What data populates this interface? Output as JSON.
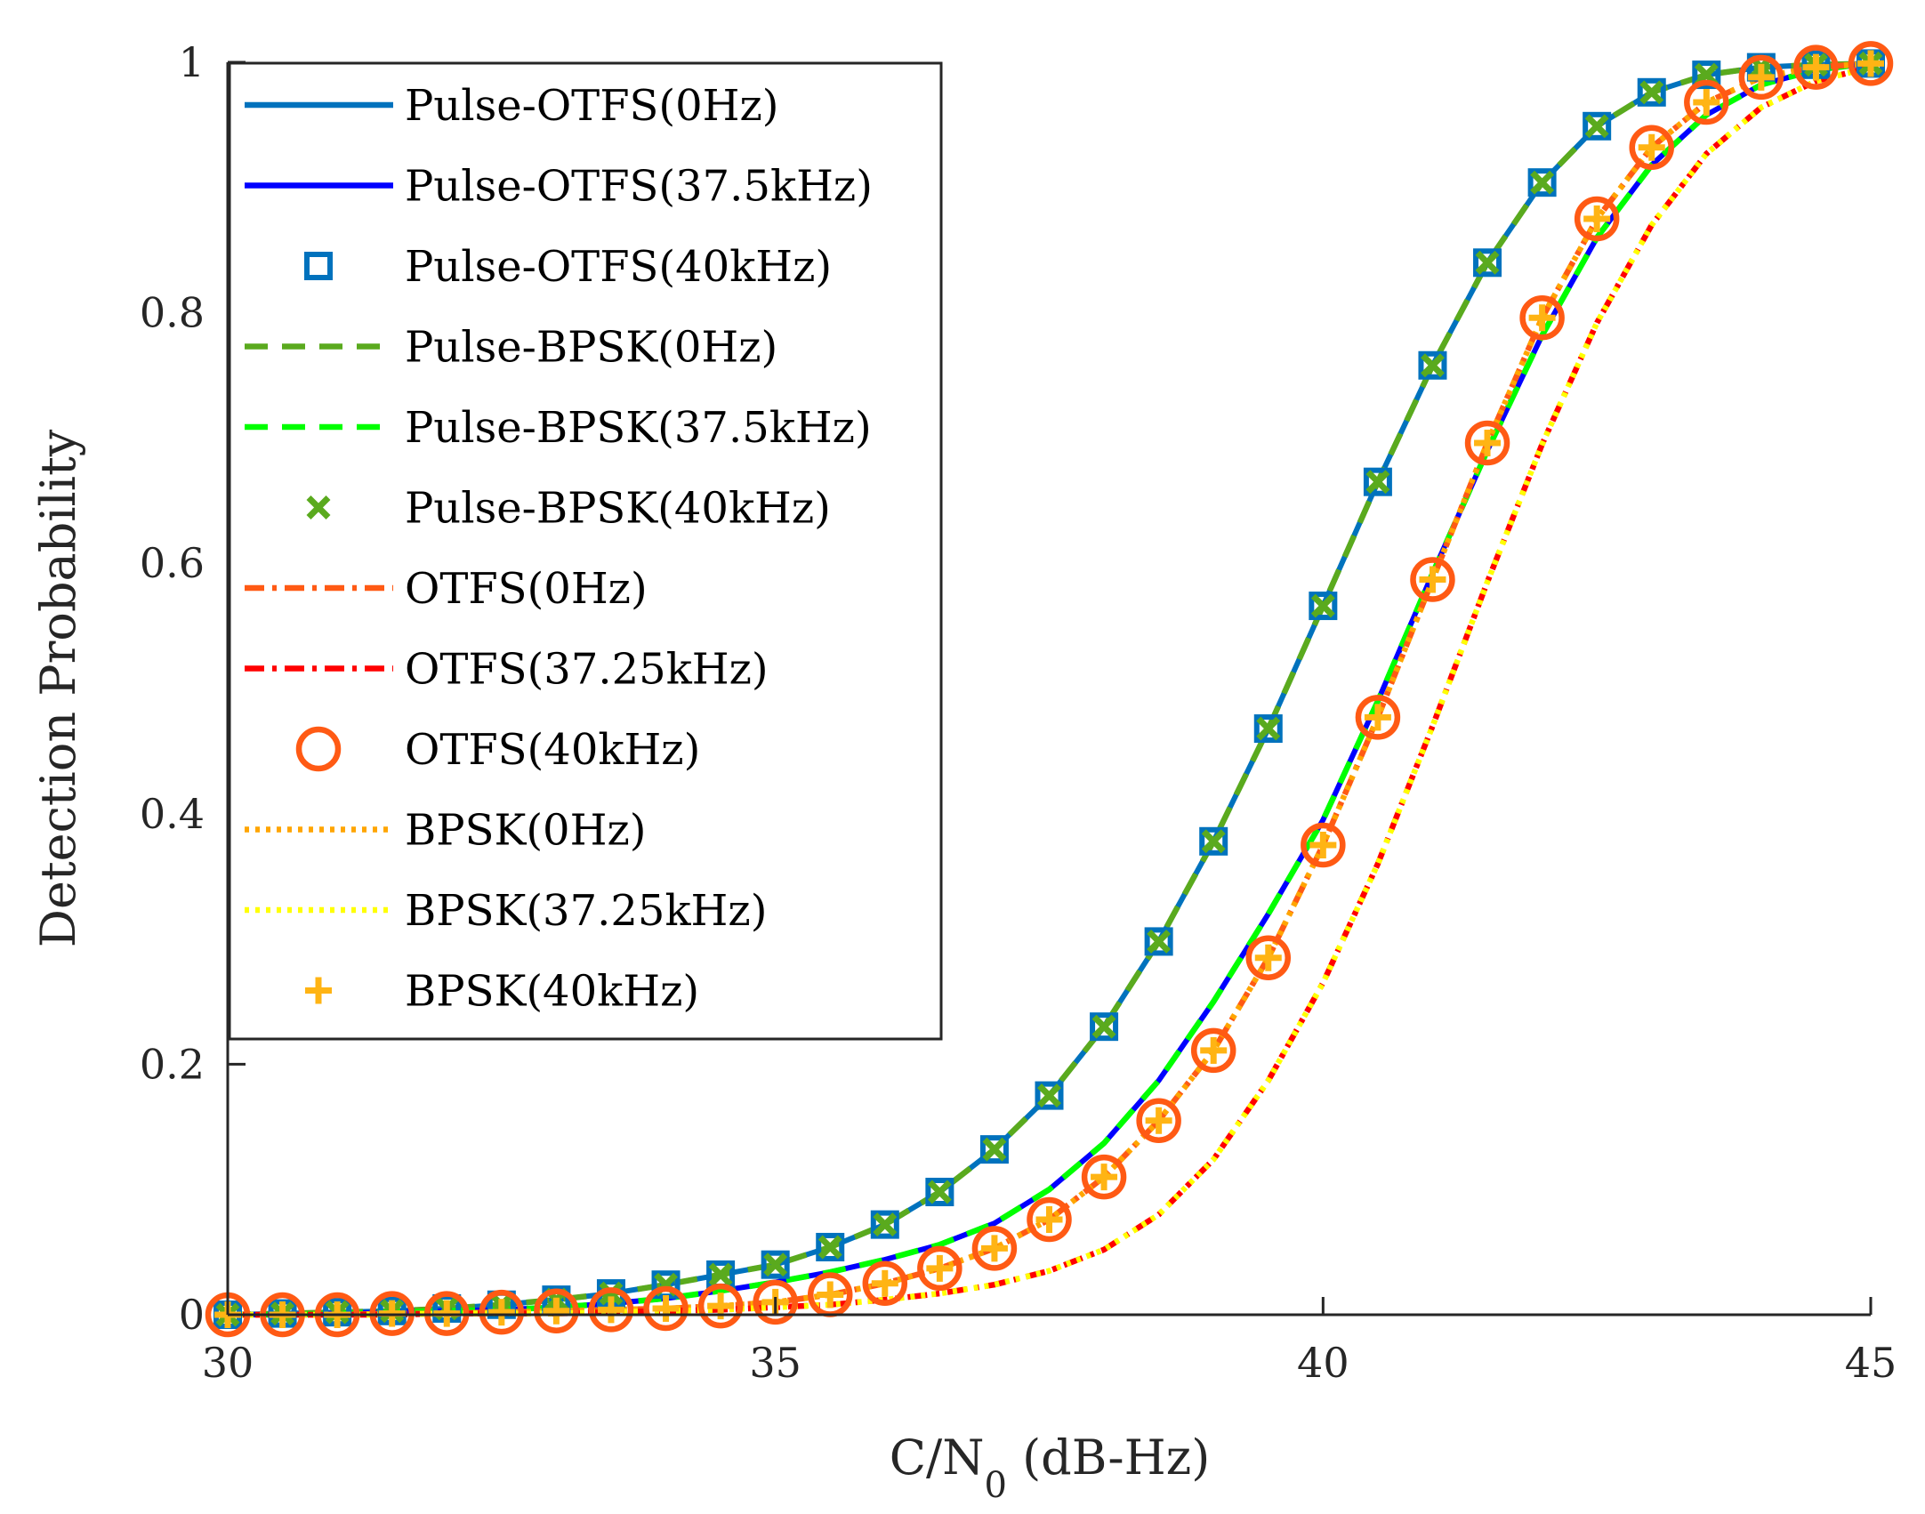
{
  "chart_data": {
    "type": "line",
    "title": "",
    "xlabel": "C/N",
    "xlabel_subscript": "0",
    "xlabel_suffix": " (dB-Hz)",
    "ylabel": "Detection Probability",
    "xlim": [
      30,
      45
    ],
    "ylim": [
      0,
      1
    ],
    "xticks": [
      30,
      35,
      40,
      45
    ],
    "xtick_labels": [
      "30",
      "35",
      "40",
      "45"
    ],
    "yticks": [
      0,
      0.2,
      0.4,
      0.6,
      0.8,
      1
    ],
    "ytick_labels": [
      "0",
      "0.2",
      "0.4",
      "0.6",
      "0.8",
      "1"
    ],
    "legend_position": "top-left",
    "x": [
      30,
      30.5,
      31,
      31.5,
      32,
      32.5,
      33,
      33.5,
      34,
      34.5,
      35,
      35.5,
      36,
      36.5,
      37,
      37.5,
      38,
      38.5,
      39,
      39.5,
      40,
      40.5,
      41,
      41.5,
      42,
      42.5,
      43,
      43.5,
      44,
      44.5,
      45
    ],
    "series": [
      {
        "name": "Pulse-OTFS(0Hz)",
        "color": "#0072BD",
        "style": "solid",
        "marker": "none",
        "values": [
          0.0,
          0.001,
          0.002,
          0.003,
          0.005,
          0.008,
          0.012,
          0.017,
          0.024,
          0.032,
          0.04,
          0.054,
          0.072,
          0.098,
          0.132,
          0.175,
          0.23,
          0.298,
          0.378,
          0.468,
          0.566,
          0.665,
          0.758,
          0.84,
          0.904,
          0.949,
          0.976,
          0.99,
          0.996,
          0.998,
          0.999
        ]
      },
      {
        "name": "Pulse-OTFS(37.5kHz)",
        "color": "#0000FF",
        "style": "solid",
        "marker": "none",
        "values": [
          0.0,
          0.0,
          0.001,
          0.002,
          0.003,
          0.004,
          0.006,
          0.009,
          0.013,
          0.019,
          0.026,
          0.034,
          0.044,
          0.056,
          0.073,
          0.1,
          0.137,
          0.187,
          0.25,
          0.32,
          0.395,
          0.49,
          0.592,
          0.69,
          0.782,
          0.86,
          0.918,
          0.958,
          0.982,
          0.994,
          0.999
        ]
      },
      {
        "name": "Pulse-OTFS(40kHz)",
        "color": "#0072BD",
        "style": "none",
        "marker": "square",
        "values": [
          0.0,
          0.001,
          0.002,
          0.003,
          0.005,
          0.008,
          0.012,
          0.017,
          0.024,
          0.032,
          0.04,
          0.054,
          0.072,
          0.098,
          0.132,
          0.175,
          0.23,
          0.298,
          0.378,
          0.468,
          0.566,
          0.665,
          0.758,
          0.84,
          0.904,
          0.949,
          0.976,
          0.99,
          0.996,
          0.998,
          0.999
        ]
      },
      {
        "name": "Pulse-BPSK(0Hz)",
        "color": "#5AAA1E",
        "style": "dashed",
        "marker": "none",
        "values": [
          0.0,
          0.001,
          0.002,
          0.003,
          0.005,
          0.008,
          0.012,
          0.017,
          0.024,
          0.032,
          0.04,
          0.054,
          0.072,
          0.098,
          0.132,
          0.175,
          0.23,
          0.298,
          0.378,
          0.468,
          0.566,
          0.665,
          0.758,
          0.84,
          0.904,
          0.949,
          0.976,
          0.99,
          0.996,
          0.998,
          0.999
        ]
      },
      {
        "name": "Pulse-BPSK(37.5kHz)",
        "color": "#00FF00",
        "style": "dashed",
        "marker": "none",
        "values": [
          0.0,
          0.0,
          0.001,
          0.002,
          0.003,
          0.004,
          0.006,
          0.009,
          0.013,
          0.019,
          0.026,
          0.034,
          0.044,
          0.056,
          0.073,
          0.1,
          0.137,
          0.187,
          0.25,
          0.32,
          0.395,
          0.49,
          0.592,
          0.69,
          0.782,
          0.86,
          0.918,
          0.958,
          0.982,
          0.994,
          0.999
        ]
      },
      {
        "name": "Pulse-BPSK(40kHz)",
        "color": "#5AAA1E",
        "style": "none",
        "marker": "x",
        "values": [
          0.0,
          0.001,
          0.002,
          0.003,
          0.005,
          0.008,
          0.012,
          0.017,
          0.024,
          0.032,
          0.04,
          0.054,
          0.072,
          0.098,
          0.132,
          0.175,
          0.23,
          0.298,
          0.378,
          0.468,
          0.566,
          0.665,
          0.758,
          0.84,
          0.904,
          0.949,
          0.976,
          0.99,
          0.996,
          0.998,
          0.999
        ]
      },
      {
        "name": "OTFS(0Hz)",
        "color": "#FF5A14",
        "style": "dashdot",
        "marker": "none",
        "values": [
          0.0,
          0.0,
          0.0,
          0.001,
          0.001,
          0.002,
          0.003,
          0.004,
          0.005,
          0.007,
          0.01,
          0.016,
          0.025,
          0.037,
          0.053,
          0.076,
          0.11,
          0.155,
          0.211,
          0.285,
          0.375,
          0.477,
          0.587,
          0.696,
          0.796,
          0.875,
          0.932,
          0.968,
          0.988,
          0.996,
          0.999
        ]
      },
      {
        "name": "OTFS(37.25kHz)",
        "color": "#FF0000",
        "style": "dashdot",
        "marker": "none",
        "values": [
          0.0,
          0.0,
          0.0,
          0.0,
          0.001,
          0.001,
          0.001,
          0.002,
          0.003,
          0.004,
          0.006,
          0.008,
          0.012,
          0.017,
          0.024,
          0.035,
          0.052,
          0.08,
          0.124,
          0.187,
          0.265,
          0.36,
          0.47,
          0.585,
          0.695,
          0.792,
          0.87,
          0.927,
          0.964,
          0.985,
          0.996
        ]
      },
      {
        "name": "OTFS(40kHz)",
        "color": "#FF5A14",
        "style": "none",
        "marker": "circle",
        "values": [
          0.0,
          0.0,
          0.0,
          0.001,
          0.001,
          0.002,
          0.003,
          0.004,
          0.005,
          0.007,
          0.01,
          0.016,
          0.025,
          0.037,
          0.053,
          0.076,
          0.11,
          0.155,
          0.211,
          0.285,
          0.375,
          0.477,
          0.587,
          0.696,
          0.796,
          0.875,
          0.932,
          0.968,
          0.988,
          0.996,
          0.999
        ]
      },
      {
        "name": "BPSK(0Hz)",
        "color": "#FFA500",
        "style": "dotted",
        "marker": "none",
        "values": [
          0.0,
          0.0,
          0.0,
          0.001,
          0.001,
          0.002,
          0.003,
          0.004,
          0.005,
          0.007,
          0.01,
          0.016,
          0.025,
          0.037,
          0.053,
          0.076,
          0.11,
          0.155,
          0.211,
          0.285,
          0.375,
          0.477,
          0.587,
          0.696,
          0.796,
          0.875,
          0.932,
          0.968,
          0.988,
          0.996,
          0.999
        ]
      },
      {
        "name": "BPSK(37.25kHz)",
        "color": "#FFFF00",
        "style": "dotted",
        "marker": "none",
        "values": [
          0.0,
          0.0,
          0.0,
          0.0,
          0.001,
          0.001,
          0.001,
          0.002,
          0.003,
          0.004,
          0.006,
          0.008,
          0.012,
          0.017,
          0.024,
          0.035,
          0.052,
          0.08,
          0.124,
          0.187,
          0.265,
          0.36,
          0.47,
          0.585,
          0.695,
          0.792,
          0.87,
          0.927,
          0.964,
          0.985,
          0.996
        ]
      },
      {
        "name": "BPSK(40kHz)",
        "color": "#FFB414",
        "style": "none",
        "marker": "plus",
        "values": [
          0.0,
          0.0,
          0.0,
          0.001,
          0.001,
          0.002,
          0.003,
          0.004,
          0.005,
          0.007,
          0.01,
          0.016,
          0.025,
          0.037,
          0.053,
          0.076,
          0.11,
          0.155,
          0.211,
          0.285,
          0.375,
          0.477,
          0.587,
          0.696,
          0.796,
          0.875,
          0.932,
          0.968,
          0.988,
          0.996,
          0.999
        ]
      }
    ]
  }
}
